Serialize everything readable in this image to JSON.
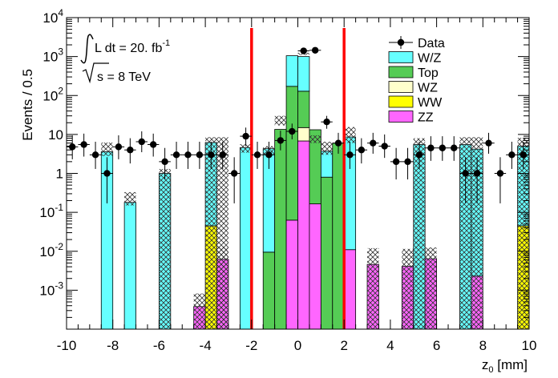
{
  "chart_data": {
    "type": "bar",
    "subtype": "stacked-histogram-with-data-points",
    "ylabel": "Events / 0.5",
    "xlabel": "z0 [mm]",
    "xlabel_main": "z",
    "xlabel_sub": "0",
    "xlabel_unit": " [mm]",
    "xlim": [
      -10,
      10
    ],
    "ylim": [
      0.0001,
      10000
    ],
    "yscale": "log",
    "bin_width": 0.5,
    "x_tick_labels": [
      "-10",
      "-8",
      "-6",
      "-4",
      "-2",
      "0",
      "2",
      "4",
      "6",
      "8",
      "10"
    ],
    "y_tick_labels": [
      {
        "value": 0.001,
        "base": "10",
        "exp": "-3"
      },
      {
        "value": 0.01,
        "base": "10",
        "exp": "-2"
      },
      {
        "value": 0.1,
        "base": "10",
        "exp": "-1"
      },
      {
        "value": 1,
        "base": "1",
        "exp": ""
      },
      {
        "value": 10,
        "base": "10",
        "exp": ""
      },
      {
        "value": 100,
        "base": "10",
        "exp": "2"
      },
      {
        "value": 1000,
        "base": "10",
        "exp": "3"
      },
      {
        "value": 10000,
        "base": "10",
        "exp": "4"
      }
    ],
    "annotation": {
      "lumi_prefix": "L dt = 20. fb",
      "lumi_exp": "-1",
      "energy_rest": "s = 8 TeV"
    },
    "legend_position": "top-right",
    "legend": [
      {
        "label": "Data",
        "kind": "marker",
        "color": "#000000"
      },
      {
        "label": "W/Z",
        "kind": "fill",
        "color": "#66ffff"
      },
      {
        "label": "Top",
        "kind": "fill",
        "color": "#55cc55"
      },
      {
        "label": "WZ",
        "kind": "fill",
        "color": "#ffffcc"
      },
      {
        "label": "WW",
        "kind": "fill",
        "color": "#ffff00"
      },
      {
        "label": "ZZ",
        "kind": "fill",
        "color": "#ff66ff"
      }
    ],
    "cut_lines": [
      -2,
      2
    ],
    "cut_line_color": "#ff0000",
    "stack_order": [
      "ZZ",
      "WW",
      "WZ",
      "Top",
      "W/Z"
    ],
    "stack_bins": [
      {
        "x": [
          -8.5,
          -8.0
        ],
        "components": {
          "W/Z": 3.6
        }
      },
      {
        "x": [
          -7.5,
          -7.0
        ],
        "components": {
          "W/Z": 0.18
        }
      },
      {
        "x": [
          -6.0,
          -5.5
        ],
        "components": {
          "W/Z": 1.0
        }
      },
      {
        "x": [
          -4.5,
          -4.0
        ],
        "components": {
          "ZZ": 0.00038
        }
      },
      {
        "x": [
          -4.0,
          -3.5
        ],
        "components": {
          "WW": 0.045,
          "W/Z": 6.2
        }
      },
      {
        "x": [
          -3.5,
          -3.0
        ],
        "components": {
          "ZZ": 0.0062
        }
      },
      {
        "x": [
          -2.5,
          -2.0
        ],
        "components": {
          "W/Z": 4.6
        }
      },
      {
        "x": [
          -1.5,
          -1.0
        ],
        "components": {
          "Top": 0.0095,
          "W/Z": 4.3
        }
      },
      {
        "x": [
          -1.0,
          -0.5
        ],
        "components": {
          "Top": 13.5,
          "W/Z": 8.5
        }
      },
      {
        "x": [
          -0.5,
          0.0
        ],
        "components": {
          "ZZ": 0.063,
          "WZ": 0.057,
          "Top": 172,
          "W/Z": 1050
        }
      },
      {
        "x": [
          0.0,
          0.5
        ],
        "components": {
          "ZZ": 6.8,
          "WZ": 15,
          "Top": 129,
          "W/Z": 1000
        }
      },
      {
        "x": [
          0.5,
          1.0
        ],
        "components": {
          "ZZ": 0.165,
          "WZ": 0.155,
          "Top": 13.2,
          "W/Z": 5.6
        }
      },
      {
        "x": [
          1.0,
          1.5
        ],
        "components": {
          "Top": 0.8,
          "W/Z": 3.7
        }
      },
      {
        "x": [
          1.5,
          2.0
        ],
        "components": {
          "Top": 6.0
        }
      },
      {
        "x": [
          2.0,
          2.5
        ],
        "components": {
          "ZZ": 0.011,
          "W/Z": 8.6
        }
      },
      {
        "x": [
          3.0,
          3.5
        ],
        "components": {
          "ZZ": 0.0046
        }
      },
      {
        "x": [
          4.5,
          5.0
        ],
        "components": {
          "ZZ": 0.0041
        }
      },
      {
        "x": [
          5.0,
          5.5
        ],
        "components": {
          "W/Z": 5.5
        }
      },
      {
        "x": [
          5.5,
          6.0
        ],
        "components": {
          "ZZ": 0.0064
        }
      },
      {
        "x": [
          7.0,
          7.5
        ],
        "components": {
          "W/Z": 5.5
        }
      },
      {
        "x": [
          7.5,
          8.0
        ],
        "components": {
          "ZZ": 0.0023,
          "W/Z": 4.2
        }
      },
      {
        "x": [
          9.5,
          10.0
        ],
        "components": {
          "WW": 0.045,
          "W/Z": 5.0
        }
      }
    ],
    "uncertainty_bands": [
      {
        "x": [
          -8.5,
          -8.0
        ],
        "lo": 2.8,
        "hi": 6.2
      },
      {
        "x": [
          -7.5,
          -7.0
        ],
        "lo": 0.15,
        "hi": 0.33
      },
      {
        "x": [
          -6.0,
          -5.5
        ],
        "lo": 0.0001,
        "hi": 1.3
      },
      {
        "x": [
          -4.5,
          -4.0
        ],
        "lo": 0.0001,
        "hi": 0.00082
      },
      {
        "x": [
          -4.0,
          -3.5
        ],
        "lo": 0.0001,
        "hi": 8.5
      },
      {
        "x": [
          -3.5,
          -3.0
        ],
        "lo": 0.0001,
        "hi": 8.5
      },
      {
        "x": [
          -3.5,
          -3.0
        ],
        "lo": 0.0001,
        "hi": 0.013
      },
      {
        "x": [
          -2.5,
          -2.0
        ],
        "lo": 3.4,
        "hi": 5.6
      },
      {
        "x": [
          -1.5,
          -1.0
        ],
        "lo": 3.0,
        "hi": 5.0
      },
      {
        "x": [
          -1.0,
          -0.5
        ],
        "lo": 17.0,
        "hi": 30.0
      },
      {
        "x": [
          0.0,
          0.5
        ],
        "lo": 1100,
        "hi": 1250
      },
      {
        "x": [
          0.5,
          1.0
        ],
        "lo": 6.0,
        "hi": 9.5
      },
      {
        "x": [
          1.0,
          1.5
        ],
        "lo": 3.0,
        "hi": 6.5
      },
      {
        "x": [
          2.0,
          2.5
        ],
        "lo": 6.0,
        "hi": 15.5
      },
      {
        "x": [
          3.0,
          3.5
        ],
        "lo": 0.0001,
        "hi": 0.012
      },
      {
        "x": [
          4.5,
          5.0
        ],
        "lo": 0.0001,
        "hi": 0.0115
      },
      {
        "x": [
          5.0,
          5.5
        ],
        "lo": 0.0001,
        "hi": 8.0
      },
      {
        "x": [
          5.5,
          6.0
        ],
        "lo": 0.0001,
        "hi": 0.0125
      },
      {
        "x": [
          7.0,
          7.5
        ],
        "lo": 0.0001,
        "hi": 8.5
      },
      {
        "x": [
          7.5,
          8.0
        ],
        "lo": 0.0001,
        "hi": 8.5
      },
      {
        "x": [
          9.5,
          10.0
        ],
        "lo": 0.0001,
        "hi": 8.2
      }
    ],
    "data_points": [
      {
        "x": -9.75,
        "y": 4.8,
        "lo": 2.3,
        "hi": 9.5
      },
      {
        "x": -9.25,
        "y": 5.5,
        "lo": 2.7,
        "hi": 10.5
      },
      {
        "x": -8.75,
        "y": 3.0,
        "lo": 1.3,
        "hi": 6.5
      },
      {
        "x": -8.25,
        "y": 1.0,
        "lo": 0.17,
        "hi": 2.6
      },
      {
        "x": -7.75,
        "y": 4.8,
        "lo": 2.3,
        "hi": 9.5
      },
      {
        "x": -7.25,
        "y": 4.0,
        "lo": 1.8,
        "hi": 8.0
      },
      {
        "x": -6.75,
        "y": 6.5,
        "lo": 3.5,
        "hi": 12.0
      },
      {
        "x": -6.25,
        "y": 5.5,
        "lo": 2.7,
        "hi": 10.5
      },
      {
        "x": -5.75,
        "y": 2.0,
        "lo": 0.7,
        "hi": 4.5
      },
      {
        "x": -5.25,
        "y": 3.0,
        "lo": 1.3,
        "hi": 6.5
      },
      {
        "x": -4.75,
        "y": 3.0,
        "lo": 1.3,
        "hi": 6.5
      },
      {
        "x": -4.25,
        "y": 3.0,
        "lo": 1.3,
        "hi": 6.5
      },
      {
        "x": -3.75,
        "y": 3.0,
        "lo": 1.3,
        "hi": 6.5
      },
      {
        "x": -3.25,
        "y": 3.0,
        "lo": 1.3,
        "hi": 6.5
      },
      {
        "x": -2.75,
        "y": 1.0,
        "lo": 0.17,
        "hi": 2.6
      },
      {
        "x": -2.25,
        "y": 9.0,
        "lo": 5.0,
        "hi": 15.0
      },
      {
        "x": -1.75,
        "y": 3.0,
        "lo": 1.3,
        "hi": 6.5
      },
      {
        "x": -1.25,
        "y": 3.0,
        "lo": 1.3,
        "hi": 6.5
      },
      {
        "x": -0.75,
        "y": 7.0,
        "lo": 3.9,
        "hi": 12.5
      },
      {
        "x": -0.25,
        "y": 12.0,
        "lo": 7.5,
        "hi": 19.0
      },
      {
        "x": 0.25,
        "y": 1400,
        "lo": 1300,
        "hi": 1480
      },
      {
        "x": 0.75,
        "y": 1450,
        "lo": 1350,
        "hi": 1530
      },
      {
        "x": 1.25,
        "y": 21.0,
        "lo": 14.0,
        "hi": 30.0
      },
      {
        "x": 1.75,
        "y": 6.0,
        "lo": 3.2,
        "hi": 11.0
      },
      {
        "x": 2.25,
        "y": 3.0,
        "lo": 1.3,
        "hi": 6.5
      },
      {
        "x": 2.75,
        "y": 4.0,
        "lo": 1.8,
        "hi": 8.0
      },
      {
        "x": 3.25,
        "y": 6.0,
        "lo": 3.2,
        "hi": 11.0
      },
      {
        "x": 3.75,
        "y": 5.0,
        "lo": 2.5,
        "hi": 10.0
      },
      {
        "x": 4.25,
        "y": 2.0,
        "lo": 0.7,
        "hi": 4.5
      },
      {
        "x": 4.75,
        "y": 2.0,
        "lo": 0.7,
        "hi": 4.5
      },
      {
        "x": 5.25,
        "y": 3.0,
        "lo": 1.3,
        "hi": 6.5
      },
      {
        "x": 5.75,
        "y": 4.5,
        "lo": 2.1,
        "hi": 9.0
      },
      {
        "x": 6.25,
        "y": 4.5,
        "lo": 2.1,
        "hi": 9.0
      },
      {
        "x": 6.75,
        "y": 4.5,
        "lo": 2.1,
        "hi": 9.0
      },
      {
        "x": 7.25,
        "y": 1.0,
        "lo": 0.17,
        "hi": 2.6
      },
      {
        "x": 7.75,
        "y": 1.0,
        "lo": 0.17,
        "hi": 2.6
      },
      {
        "x": 8.25,
        "y": 6.0,
        "lo": 3.2,
        "hi": 11.0
      },
      {
        "x": 8.75,
        "y": 1.0,
        "lo": 0.17,
        "hi": 2.6
      },
      {
        "x": 9.25,
        "y": 3.0,
        "lo": 1.3,
        "hi": 6.5
      },
      {
        "x": 9.75,
        "y": 3.0,
        "lo": 1.3,
        "hi": 6.5
      }
    ]
  }
}
